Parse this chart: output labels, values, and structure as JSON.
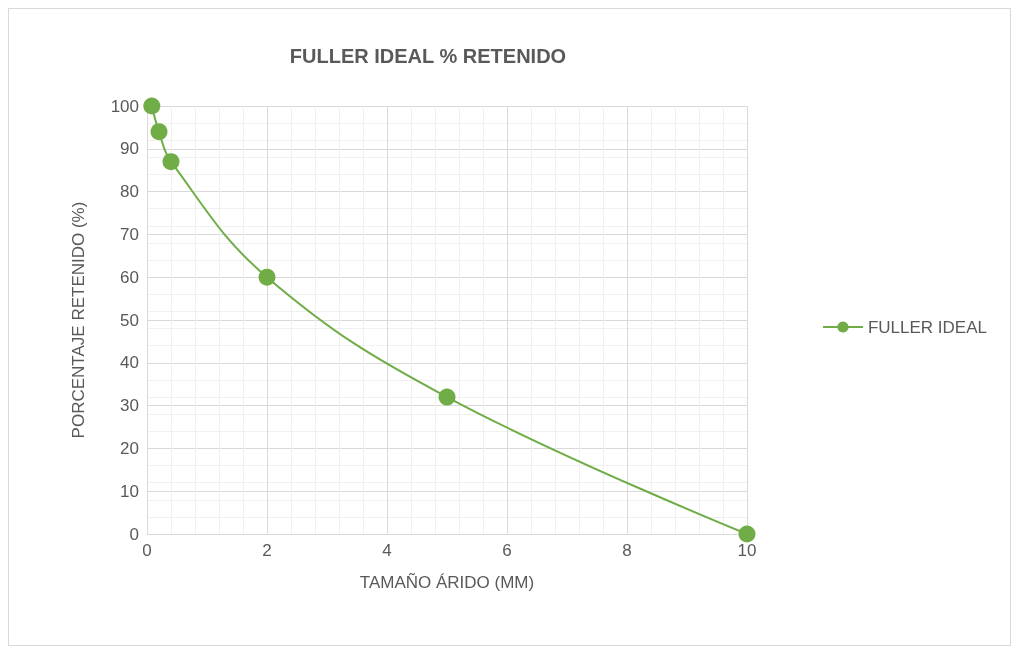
{
  "chart_data": {
    "type": "line",
    "title": "FULLER IDEAL % RETENIDO",
    "xlabel": "TAMAÑO ÁRIDO (MM)",
    "ylabel": "PORCENTAJE RETENIDO (%)",
    "x": [
      0.08,
      0.2,
      0.4,
      2,
      5,
      10
    ],
    "series": [
      {
        "name": "FULLER IDEAL",
        "color": "#70ad47",
        "values": [
          100,
          94,
          87,
          60,
          32,
          0
        ]
      }
    ],
    "xlim": [
      0,
      10
    ],
    "xticks": [
      0,
      2,
      4,
      6,
      8,
      10
    ],
    "ylim": [
      0,
      100
    ],
    "yticks": [
      0,
      10,
      20,
      30,
      40,
      50,
      60,
      70,
      80,
      90,
      100
    ],
    "grid": true,
    "legend": "right",
    "marker": "circle",
    "line_style": "solid"
  }
}
